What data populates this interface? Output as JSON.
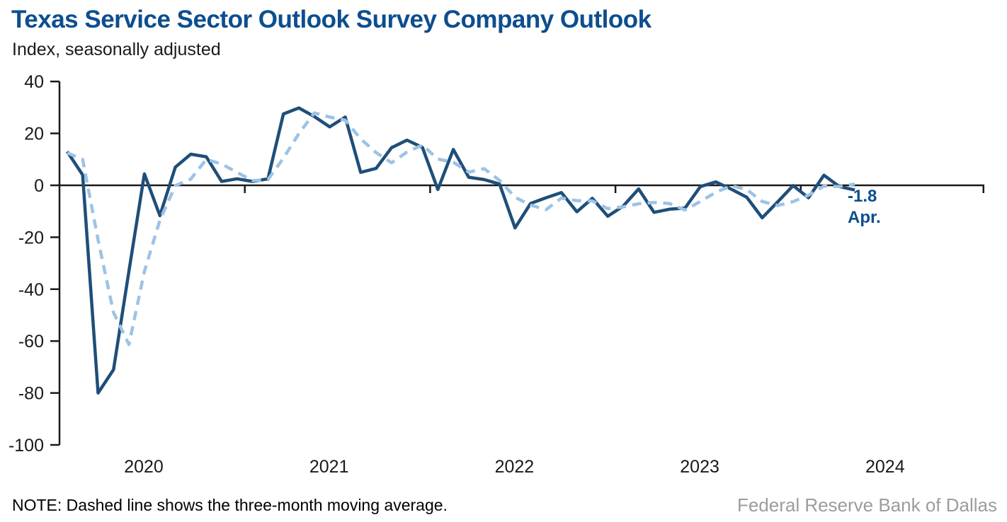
{
  "header": {
    "title": "Texas Service Sector Outlook Survey Company Outlook",
    "subtitle": "Index, seasonally adjusted"
  },
  "chart_data": {
    "type": "line",
    "title": "Texas Service Sector Outlook Survey Company Outlook",
    "ylabel": "Index, seasonally adjusted",
    "xlabel": "",
    "ylim": [
      -100,
      40
    ],
    "ytick_interval": 20,
    "ytick_labels": [
      "40",
      "20",
      "0",
      "-20",
      "-40",
      "-60",
      "-80",
      "-100"
    ],
    "xtick_labels": [
      "2020",
      "2021",
      "2022",
      "2023",
      "2024"
    ],
    "frequency": "monthly",
    "x_start": "2020-01",
    "x_end": "2024-04",
    "grid": "none",
    "legend_position": "none",
    "zero_axis": true,
    "series": [
      {
        "name": "Company outlook index",
        "style": "solid",
        "color": "#1f4e79",
        "values": [
          13,
          4,
          -80,
          -71,
          -33,
          4.4,
          -11.7,
          7,
          12,
          11,
          1.5,
          2.5,
          1.5,
          2.5,
          27.5,
          29.8,
          26.5,
          22.5,
          26.3,
          5,
          6.5,
          14.5,
          17.4,
          14.6,
          -1.6,
          13.8,
          3.1,
          2.2,
          0.5,
          -16.4,
          -7,
          -4.8,
          -2.8,
          -10.2,
          -5,
          -11.9,
          -8,
          -1.4,
          -10.4,
          -9.2,
          -8.8,
          -0.5,
          1.3,
          -1.5,
          -4.6,
          -12.5,
          -6.4,
          -0.1,
          -4.8,
          3.9,
          -0.5,
          -1.8
        ]
      },
      {
        "name": "Three-month moving average",
        "style": "dashed",
        "color": "#9dc3e6",
        "values": [
          12.5,
          10.0,
          -21.0,
          -49.0,
          -61.3,
          -33.2,
          -13.4,
          -0.1,
          2.4,
          10.0,
          8.2,
          5.0,
          1.8,
          2.2,
          10.5,
          19.9,
          27.9,
          26.3,
          25.1,
          17.9,
          12.6,
          8.7,
          12.8,
          15.5,
          10.1,
          8.9,
          5.1,
          6.4,
          1.9,
          -4.6,
          -7.6,
          -9.4,
          -4.9,
          -5.9,
          -6.0,
          -9.0,
          -8.3,
          -7.1,
          -6.6,
          -7.0,
          -9.5,
          -6.2,
          -2.7,
          -0.2,
          -1.6,
          -6.2,
          -7.8,
          -6.3,
          -3.8,
          -0.3,
          -0.5,
          0.5
        ]
      }
    ],
    "annotation": {
      "value_label": "-1.8",
      "month_label": "Apr.",
      "series": "Company outlook index",
      "x": "2024-04"
    }
  },
  "colors": {
    "title_blue": "#0d4e8e",
    "solid_line": "#1f4e79",
    "dashed_line": "#9dc3e6",
    "axis_black": "#1a1a1a",
    "source_gray": "#9c9c9c"
  },
  "footer": {
    "note": "NOTE: Dashed line shows the three-month moving average.",
    "source": "Federal Reserve Bank of Dallas"
  }
}
